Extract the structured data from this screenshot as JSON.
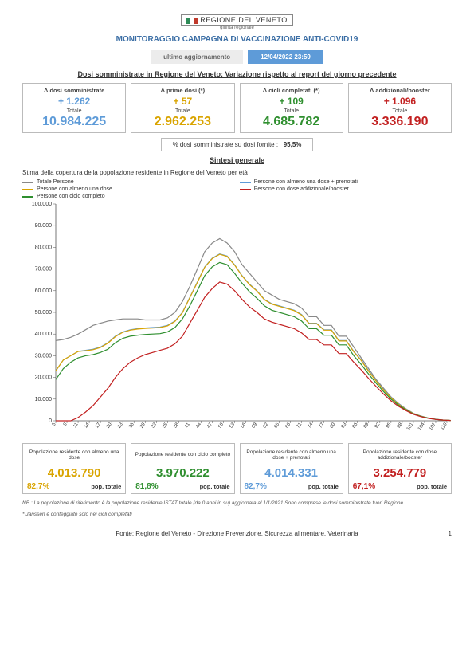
{
  "header": {
    "logo_text": "REGIONE DEL VENETO",
    "logo_sub": "giunta regionale",
    "title": "MONITORAGGIO CAMPAGNA DI VACCINAZIONE ANTI-COVID19",
    "update_label": "ultimo aggiornamento",
    "update_date": "12/04/2022 23:59"
  },
  "section_doses_title": "Dosi somministrate in Regione del Veneto: Variazione rispetto al report del giorno precedente",
  "stats": [
    {
      "label": "Δ dosi somministrate",
      "delta": "+ 1.262",
      "totale_lbl": "Totale",
      "total": "10.984.225",
      "color": "#5e9bd8"
    },
    {
      "label": "Δ prime dosi (*)",
      "delta": "+ 57",
      "totale_lbl": "Totale",
      "total": "2.962.253",
      "color": "#d9a400"
    },
    {
      "label": "Δ cicli completati (*)",
      "delta": "+ 109",
      "totale_lbl": "Totale",
      "total": "4.685.782",
      "color": "#2f8f2f"
    },
    {
      "label": "Δ addizionali/booster",
      "delta": "+ 1.096",
      "totale_lbl": "Totale",
      "total": "3.336.190",
      "color": "#c22020"
    }
  ],
  "pct_doses": {
    "label": "% dosi somministrate su dosi fornite :",
    "value": "95,5%"
  },
  "sintesi_title": "Sintesi generale",
  "chart": {
    "subtitle": "Stima della copertura della popolazione residente in Regione del Veneto per età",
    "legend": [
      {
        "label": "Totale Persone",
        "color": "#888888"
      },
      {
        "label": "Persone con almeno una dose + prenotati",
        "color": "#5e9bd8"
      },
      {
        "label": "Persone con almeno una dose",
        "color": "#d9a400"
      },
      {
        "label": "Persone con dose addizionale/booster",
        "color": "#c22020"
      },
      {
        "label": "Persone con ciclo completo",
        "color": "#2f8f2f"
      }
    ],
    "y_max": 100000,
    "y_ticks": [
      0,
      10000,
      20000,
      30000,
      40000,
      50000,
      60000,
      70000,
      80000,
      90000,
      100000
    ],
    "y_tick_labels": [
      "0",
      "10.000",
      "20.000",
      "30.000",
      "40.000",
      "50.000",
      "60.000",
      "70.000",
      "80.000",
      "90.000",
      "100.000"
    ],
    "x_labels": [
      "5",
      "8",
      "11",
      "14",
      "17",
      "20",
      "23",
      "26",
      "29",
      "32",
      "35",
      "38",
      "41",
      "44",
      "47",
      "50",
      "53",
      "56",
      "59",
      "62",
      "65",
      "68",
      "71",
      "74",
      "77",
      "80",
      "83",
      "86",
      "89",
      "92",
      "95",
      "98",
      "101",
      "104",
      "107",
      "110"
    ],
    "x_step": 3,
    "x_start": 5,
    "x_end": 110,
    "series": {
      "grey": [
        37000,
        37500,
        38500,
        40000,
        42000,
        44000,
        45000,
        46000,
        46500,
        47000,
        47000,
        47000,
        46500,
        46500,
        46500,
        47500,
        50000,
        55000,
        62000,
        70000,
        78000,
        82000,
        84000,
        82000,
        78000,
        72000,
        68000,
        64000,
        60000,
        58000,
        56000,
        55000,
        54000,
        52000,
        48000,
        48000,
        44000,
        44000,
        39000,
        39000,
        34000,
        29000,
        24000,
        19000,
        15000,
        11000,
        8000,
        5500,
        3500,
        2200,
        1300,
        700,
        350,
        150
      ],
      "blue": [
        23000,
        28000,
        30000,
        32000,
        32500,
        33000,
        34000,
        36000,
        39000,
        41000,
        42000,
        42500,
        42800,
        43000,
        43200,
        44000,
        46000,
        50000,
        57000,
        64000,
        71000,
        75000,
        77000,
        76000,
        72000,
        67000,
        63000,
        60000,
        56000,
        54000,
        53000,
        52000,
        51000,
        49000,
        45000,
        45000,
        42000,
        42000,
        37000,
        37000,
        32000,
        28000,
        23000,
        18500,
        14500,
        10800,
        7800,
        5400,
        3400,
        2150,
        1280,
        690,
        345,
        148
      ],
      "yellow": [
        23000,
        28000,
        30000,
        32000,
        32300,
        32800,
        33800,
        35800,
        38800,
        40800,
        41800,
        42300,
        42600,
        42800,
        43000,
        43800,
        45800,
        49800,
        56800,
        63800,
        70800,
        74800,
        76800,
        75800,
        71800,
        66800,
        62800,
        59800,
        55800,
        53800,
        52800,
        51800,
        50800,
        48800,
        44800,
        44800,
        41800,
        41800,
        36800,
        36800,
        31800,
        27800,
        22800,
        18300,
        14300,
        10600,
        7600,
        5250,
        3300,
        2100,
        1250,
        680,
        340,
        146
      ],
      "green": [
        19000,
        24000,
        27000,
        29000,
        30000,
        30500,
        31500,
        33000,
        36000,
        38000,
        39000,
        39500,
        39800,
        40000,
        40200,
        41000,
        43000,
        47000,
        53000,
        60000,
        67000,
        71000,
        73000,
        72000,
        68000,
        63500,
        59500,
        56500,
        53000,
        51000,
        50000,
        49000,
        48000,
        46000,
        42500,
        42500,
        39500,
        39500,
        35000,
        35000,
        30000,
        26000,
        21500,
        17300,
        13500,
        10000,
        7200,
        5000,
        3150,
        2000,
        1200,
        650,
        330,
        144
      ],
      "red": [
        0,
        0,
        0,
        1500,
        4000,
        7000,
        11000,
        15000,
        20000,
        24000,
        27000,
        29000,
        30500,
        31500,
        32500,
        33500,
        35500,
        39000,
        45000,
        51000,
        57000,
        61000,
        64000,
        63000,
        60000,
        56000,
        52500,
        50000,
        47000,
        45500,
        44500,
        43500,
        42500,
        40500,
        37500,
        37500,
        35000,
        35000,
        31000,
        31000,
        27000,
        23500,
        19500,
        15800,
        12300,
        9200,
        6700,
        4700,
        3000,
        1900,
        1150,
        630,
        320,
        140
      ]
    },
    "line_colors": {
      "grey": "#888888",
      "blue": "#5e9bd8",
      "yellow": "#d9a400",
      "green": "#2f8f2f",
      "red": "#c22020"
    },
    "axis_color": "#555555",
    "tick_fontsize": 7
  },
  "bottom": [
    {
      "title": "Popolazione residente con almeno una dose",
      "num": "4.013.790",
      "pct": "82,7%",
      "pct_lbl": "pop. totale",
      "color": "#d9a400"
    },
    {
      "title": "Popolazione residente con ciclo completo",
      "num": "3.970.222",
      "pct": "81,8%",
      "pct_lbl": "pop. totale",
      "color": "#2f8f2f"
    },
    {
      "title": "Popolazione residente con almeno una dose + prenotati",
      "num": "4.014.331",
      "pct": "82,7%",
      "pct_lbl": "pop. totale",
      "color": "#5e9bd8"
    },
    {
      "title": "Popolazione residente con dose addizionale/booster",
      "num": "3.254.779",
      "pct": "67,1%",
      "pct_lbl": "pop. totale",
      "color": "#c22020"
    }
  ],
  "footnotes": {
    "nb": "NB : La popolazione di riferimento è la popolazione residente ISTAT totale (da 0 anni in su) aggiornata al 1/1/2021.Sono comprese le dosi somministrate fuori Regione",
    "star": "* Janssen è conteggiato solo nei cicli completati"
  },
  "footer": {
    "source": "Fonte: Regione del Veneto - Direzione Prevenzione, Sicurezza alimentare, Veterinaria",
    "page": "1"
  }
}
